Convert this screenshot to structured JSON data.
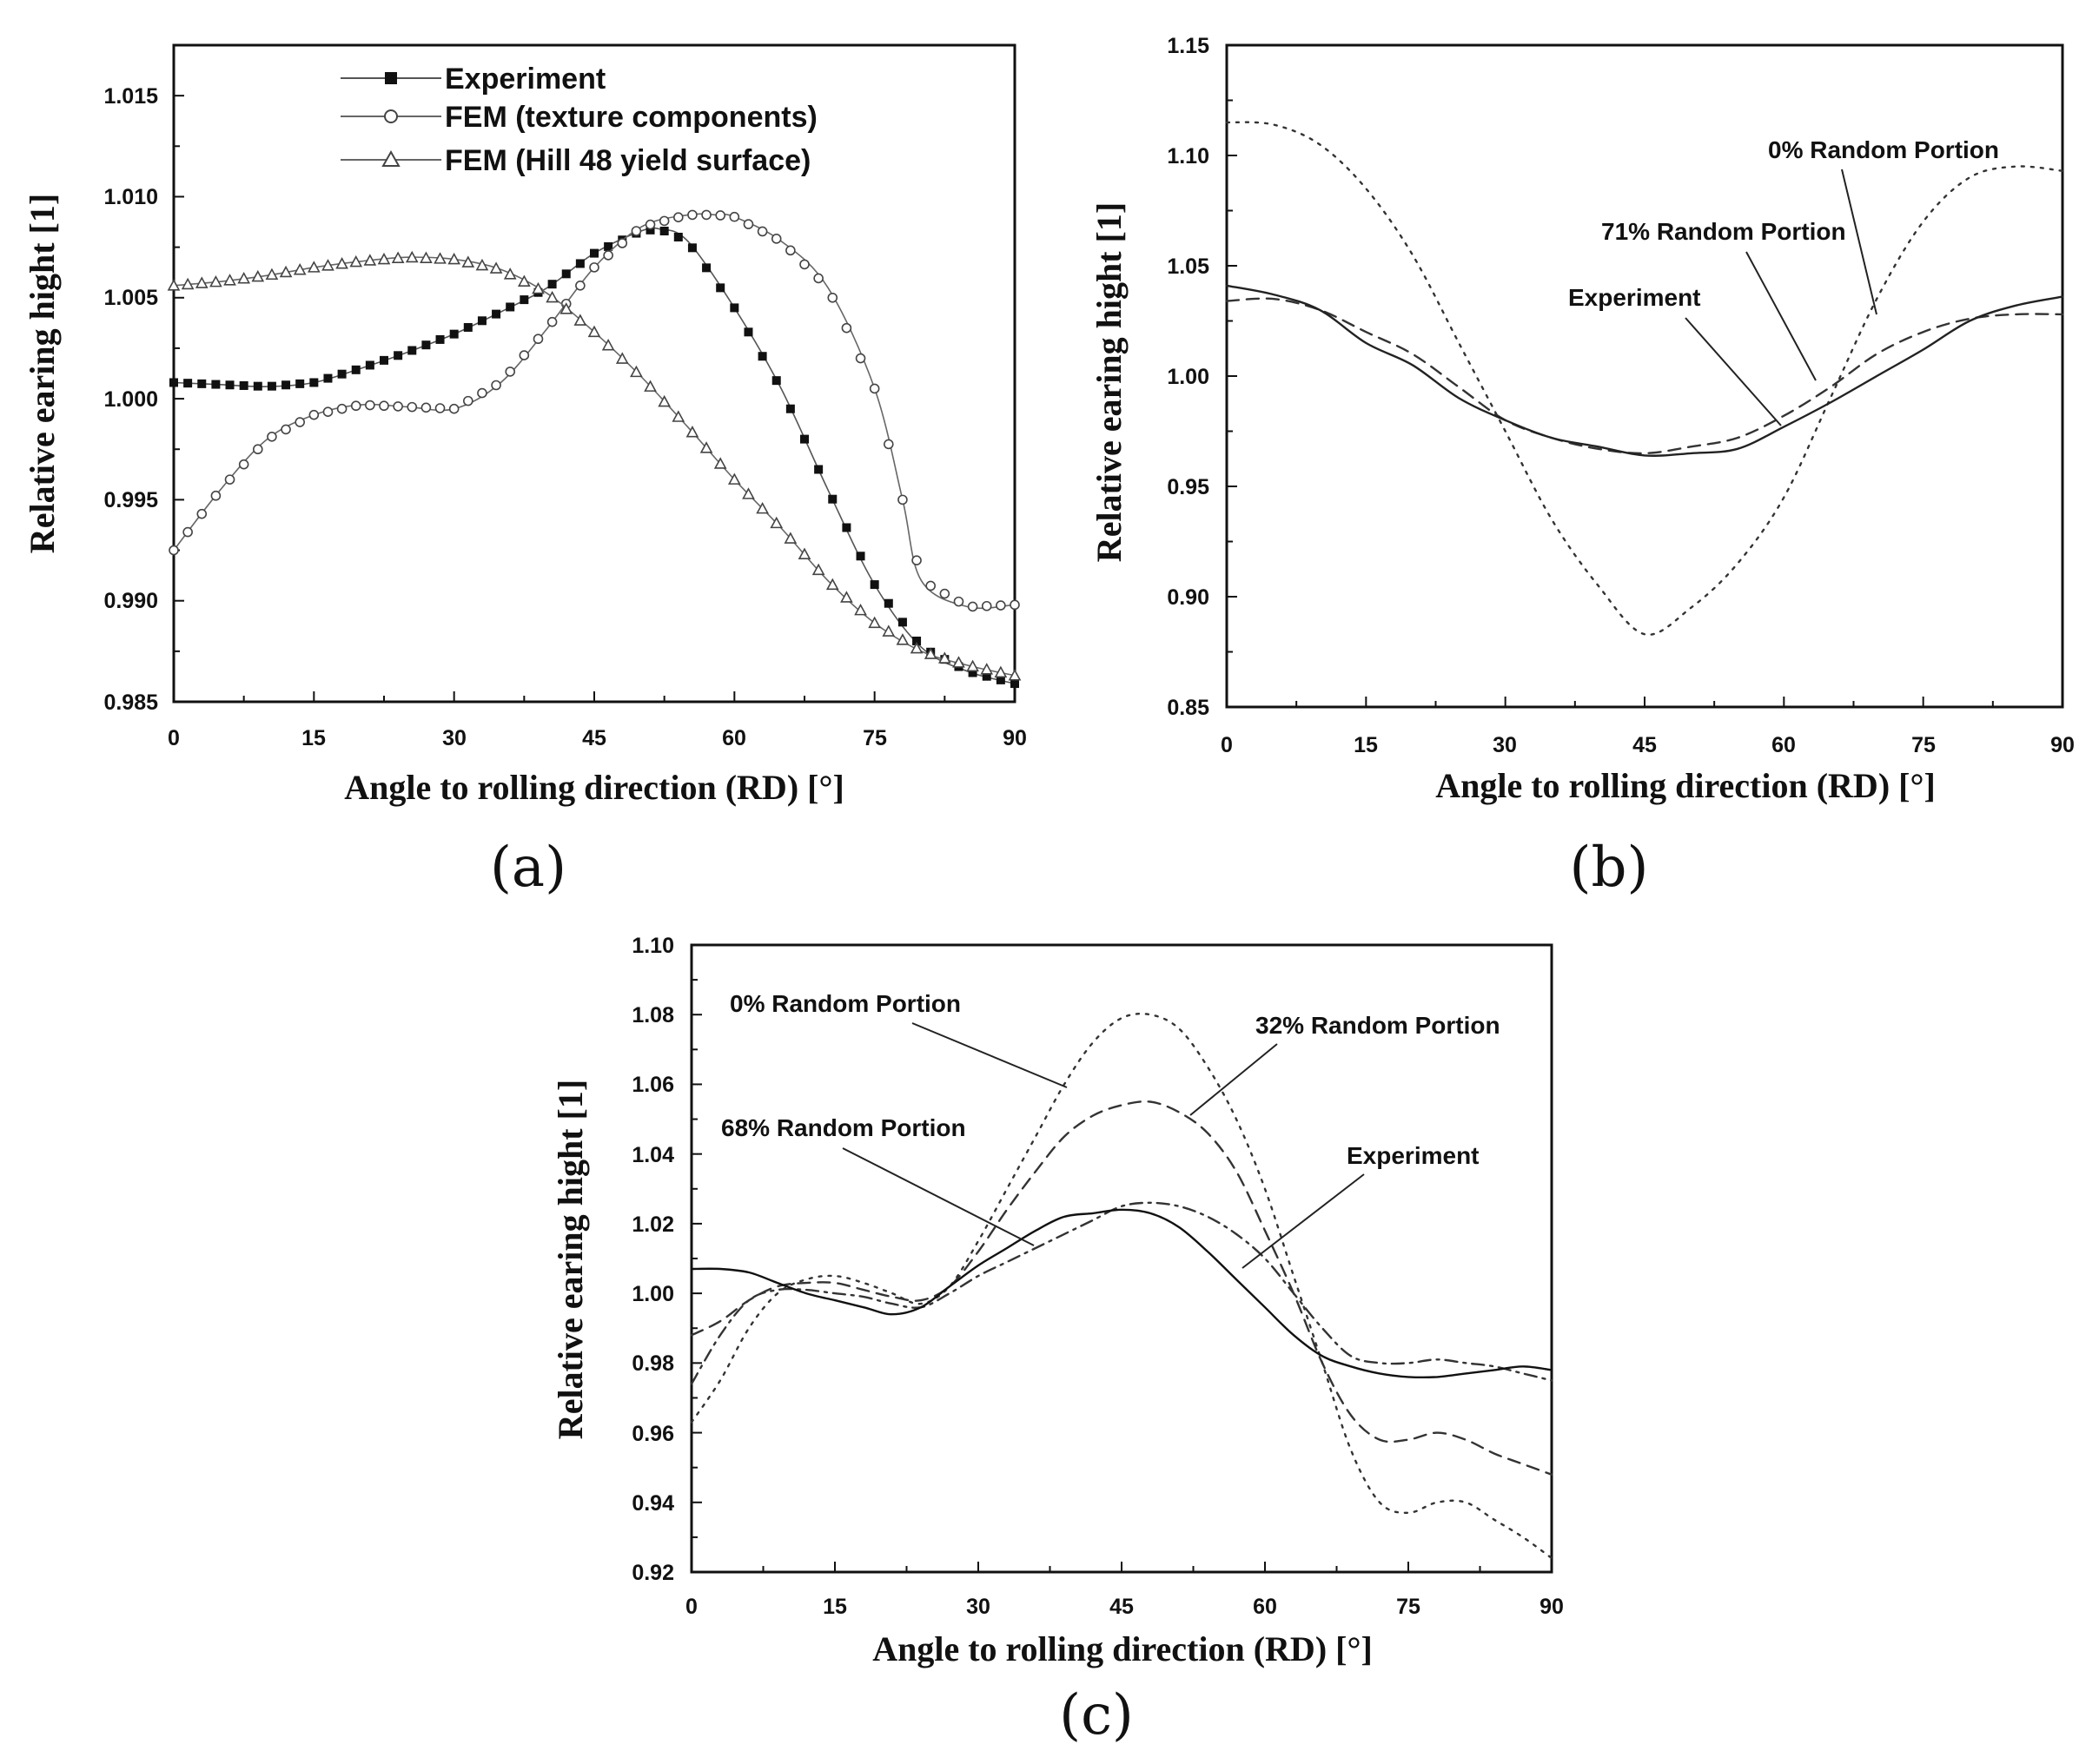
{
  "chart_data": [
    {
      "id": "a",
      "type": "line",
      "caption": "(a)",
      "xlabel": "Angle to rolling direction (RD)  [°]",
      "ylabel": "Relative earing hight  [1]",
      "xlim": [
        0,
        90
      ],
      "ylim": [
        0.985,
        1.0175
      ],
      "xticks": [
        "0",
        "15",
        "30",
        "45",
        "60",
        "75",
        "90"
      ],
      "yticks": [
        "0.985",
        "0.990",
        "0.995",
        "1.000",
        "1.005",
        "1.010",
        "1.015"
      ],
      "legend": "top-left",
      "series": [
        {
          "name": "Experiment",
          "marker": "square",
          "dash": "solid",
          "color": "#555555",
          "x": [
            0,
            5,
            10,
            15,
            20,
            25,
            30,
            35,
            40,
            45,
            50,
            52,
            55,
            60,
            65,
            70,
            75,
            80,
            85,
            90
          ],
          "y": [
            1.0008,
            1.0007,
            1.0006,
            1.0008,
            1.0015,
            1.0023,
            1.0032,
            1.0043,
            1.0055,
            1.0072,
            1.0083,
            1.0084,
            1.0078,
            1.0045,
            1.0005,
            0.9955,
            0.9908,
            0.9877,
            0.9865,
            0.9859
          ]
        },
        {
          "name": "FEM (texture components)",
          "marker": "circle",
          "dash": "solid",
          "color": "#666666",
          "x": [
            0,
            5,
            10,
            15,
            20,
            25,
            30,
            35,
            40,
            45,
            50,
            55,
            58,
            60,
            65,
            70,
            75,
            78,
            80,
            85,
            90
          ],
          "y": [
            0.9925,
            0.9955,
            0.998,
            0.9992,
            0.9997,
            0.9996,
            0.9995,
            1.0008,
            1.0035,
            1.0065,
            1.0085,
            1.0091,
            1.0091,
            1.009,
            1.0078,
            1.0055,
            1.0005,
            0.995,
            0.991,
            0.9897,
            0.9898
          ]
        },
        {
          "name": "FEM (Hill 48 yield surface)",
          "marker": "triangle",
          "dash": "solid",
          "color": "#666666",
          "x": [
            0,
            5,
            10,
            15,
            20,
            25,
            30,
            35,
            40,
            45,
            50,
            55,
            60,
            65,
            70,
            75,
            80,
            85,
            90
          ],
          "y": [
            1.0056,
            1.0058,
            1.0061,
            1.0065,
            1.0068,
            1.007,
            1.0069,
            1.0064,
            1.0052,
            1.0033,
            1.0011,
            0.9986,
            0.996,
            0.9936,
            0.991,
            0.9889,
            0.9875,
            0.9868,
            0.9863
          ]
        }
      ]
    },
    {
      "id": "b",
      "type": "line",
      "caption": "(b)",
      "xlabel": "Angle to rolling direction (RD)  [°]",
      "ylabel": "Relative earing hight  [1]",
      "xlim": [
        0,
        90
      ],
      "ylim": [
        0.85,
        1.15
      ],
      "xticks": [
        "0",
        "15",
        "30",
        "45",
        "60",
        "75",
        "90"
      ],
      "yticks": [
        "0.85",
        "0.90",
        "0.95",
        "1.00",
        "1.05",
        "1.10",
        "1.15"
      ],
      "annotations": [
        "0% Random Portion",
        "71% Random Portion",
        "Experiment"
      ],
      "series": [
        {
          "name": "0% Random Portion",
          "dash": "dotted",
          "color": "#333333",
          "x": [
            0,
            5,
            10,
            15,
            20,
            25,
            30,
            35,
            40,
            45,
            50,
            55,
            60,
            65,
            70,
            75,
            80,
            85,
            90
          ],
          "y": [
            1.115,
            1.114,
            1.105,
            1.085,
            1.055,
            1.015,
            0.975,
            0.935,
            0.905,
            0.883,
            0.895,
            0.915,
            0.945,
            0.99,
            1.035,
            1.07,
            1.09,
            1.095,
            1.093
          ]
        },
        {
          "name": "71% Random Portion",
          "dash": "dashed",
          "color": "#333333",
          "x": [
            0,
            5,
            10,
            15,
            20,
            25,
            30,
            35,
            40,
            45,
            50,
            55,
            60,
            65,
            70,
            75,
            80,
            85,
            90
          ],
          "y": [
            1.034,
            1.035,
            1.03,
            1.02,
            1.01,
            0.995,
            0.98,
            0.972,
            0.967,
            0.965,
            0.968,
            0.972,
            0.982,
            0.995,
            1.01,
            1.02,
            1.026,
            1.028,
            1.028
          ]
        },
        {
          "name": "Experiment",
          "dash": "solid",
          "color": "#222222",
          "x": [
            0,
            5,
            10,
            15,
            20,
            25,
            30,
            35,
            40,
            45,
            50,
            55,
            60,
            65,
            70,
            75,
            80,
            85,
            90
          ],
          "y": [
            1.041,
            1.037,
            1.03,
            1.015,
            1.005,
            0.99,
            0.98,
            0.972,
            0.968,
            0.964,
            0.965,
            0.967,
            0.977,
            0.988,
            1.0,
            1.012,
            1.025,
            1.032,
            1.036
          ]
        }
      ]
    },
    {
      "id": "c",
      "type": "line",
      "caption": "(c)",
      "xlabel": "Angle to rolling direction (RD)  [°]",
      "ylabel": "Relative earing hight  [1]",
      "xlim": [
        0,
        90
      ],
      "ylim": [
        0.92,
        1.1
      ],
      "xticks": [
        "0",
        "15",
        "30",
        "45",
        "60",
        "75",
        "90"
      ],
      "yticks": [
        "0.92",
        "0.94",
        "0.96",
        "0.98",
        "1.00",
        "1.02",
        "1.04",
        "1.06",
        "1.08",
        "1.10"
      ],
      "annotations": [
        "0% Random Portion",
        "32% Random Portion",
        "68% Random Portion",
        "Experiment"
      ],
      "series": [
        {
          "name": "0% Random Portion",
          "dash": "dotted",
          "color": "#333333",
          "x": [
            0,
            3,
            6,
            9,
            12,
            15,
            18,
            21,
            24,
            27,
            30,
            33,
            36,
            39,
            42,
            45,
            48,
            51,
            54,
            57,
            60,
            63,
            66,
            69,
            72,
            75,
            78,
            81,
            84,
            87,
            90
          ],
          "y": [
            0.963,
            0.975,
            0.99,
            1.0,
            1.004,
            1.005,
            1.003,
            1.0,
            0.997,
            1.002,
            1.015,
            1.03,
            1.045,
            1.06,
            1.072,
            1.079,
            1.08,
            1.076,
            1.065,
            1.05,
            1.03,
            1.005,
            0.98,
            0.955,
            0.94,
            0.937,
            0.94,
            0.94,
            0.935,
            0.93,
            0.924
          ]
        },
        {
          "name": "32% Random Portion",
          "dash": "dashed",
          "color": "#333333",
          "x": [
            0,
            3,
            6,
            9,
            12,
            15,
            18,
            21,
            24,
            27,
            30,
            33,
            36,
            39,
            42,
            45,
            48,
            51,
            54,
            57,
            60,
            63,
            66,
            69,
            72,
            75,
            78,
            81,
            84,
            87,
            90
          ],
          "y": [
            0.988,
            0.992,
            0.998,
            1.002,
            1.003,
            1.003,
            1.001,
            0.999,
            0.998,
            1.002,
            1.012,
            1.024,
            1.035,
            1.045,
            1.051,
            1.054,
            1.055,
            1.052,
            1.046,
            1.035,
            1.018,
            1.0,
            0.98,
            0.965,
            0.958,
            0.958,
            0.96,
            0.958,
            0.954,
            0.951,
            0.948
          ]
        },
        {
          "name": "68% Random Portion",
          "dash": "dashdot",
          "color": "#333333",
          "x": [
            0,
            3,
            6,
            9,
            12,
            15,
            18,
            21,
            24,
            27,
            30,
            33,
            36,
            39,
            42,
            45,
            48,
            51,
            54,
            57,
            60,
            63,
            66,
            69,
            72,
            75,
            78,
            81,
            84,
            87,
            90
          ],
          "y": [
            0.974,
            0.988,
            0.998,
            1.001,
            1.001,
            1.0,
            0.999,
            0.997,
            0.996,
            1.0,
            1.005,
            1.009,
            1.013,
            1.017,
            1.021,
            1.025,
            1.026,
            1.025,
            1.022,
            1.017,
            1.01,
            1.0,
            0.99,
            0.982,
            0.98,
            0.98,
            0.981,
            0.98,
            0.979,
            0.977,
            0.975
          ]
        },
        {
          "name": "Experiment",
          "dash": "solid",
          "color": "#111111",
          "x": [
            0,
            3,
            6,
            9,
            12,
            15,
            18,
            21,
            24,
            27,
            30,
            33,
            36,
            39,
            42,
            45,
            48,
            51,
            54,
            57,
            60,
            63,
            66,
            69,
            72,
            75,
            78,
            81,
            84,
            87,
            90
          ],
          "y": [
            1.007,
            1.007,
            1.006,
            1.003,
            1.0,
            0.998,
            0.996,
            0.994,
            0.996,
            1.002,
            1.008,
            1.013,
            1.018,
            1.022,
            1.023,
            1.024,
            1.023,
            1.019,
            1.012,
            1.004,
            0.996,
            0.988,
            0.982,
            0.979,
            0.977,
            0.976,
            0.976,
            0.977,
            0.978,
            0.979,
            0.978
          ]
        }
      ]
    }
  ]
}
